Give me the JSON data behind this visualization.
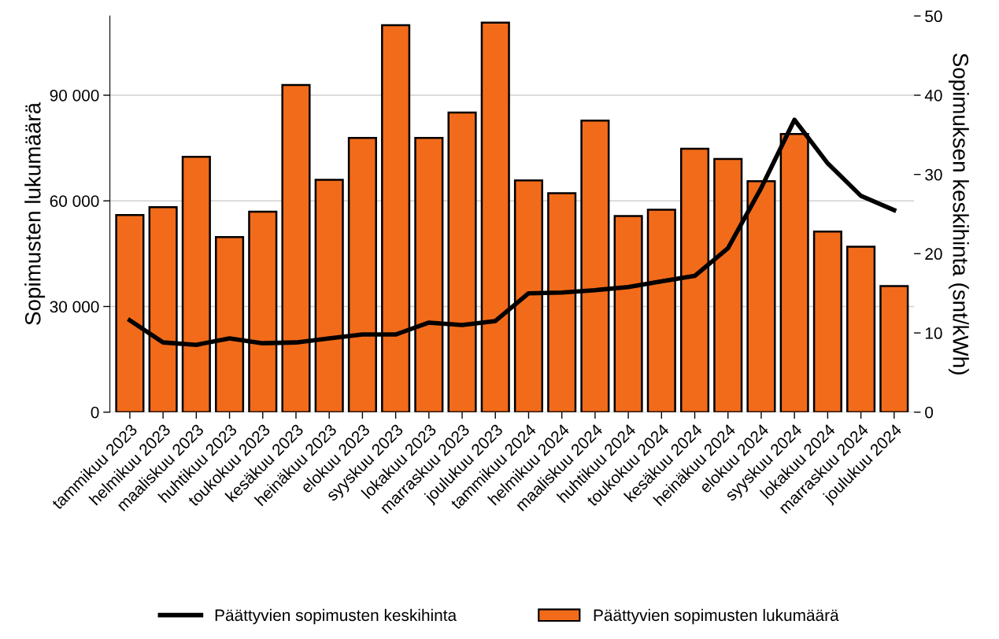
{
  "chart_data": {
    "type": "bar",
    "ylabel": "Sopimusten lukumäärä",
    "y2label": "Sopimuksen keskihinta (snt/kWh)",
    "categories": [
      "tammikuu 2023",
      "helmikuu 2023",
      "maaliskuu 2023",
      "huhtikuu 2023",
      "toukokuu 2023",
      "kesäkuu 2023",
      "heinäkuu 2023",
      "elokuu 2023",
      "syyskuu 2023",
      "lokakuu 2023",
      "marraskuu 2023",
      "joulukuu 2023",
      "tammikuu 2024",
      "helmikuu 2024",
      "maaliskuu 2024",
      "huhtikuu 2024",
      "toukokuu 2024",
      "kesäkuu 2024",
      "heinäkuu 2024",
      "elokuu 2024",
      "syyskuu 2024",
      "lokakuu 2024",
      "marraskuu 2024",
      "joulukuu 2024"
    ],
    "series": [
      {
        "name": "Päättyvien sopimusten keskihinta",
        "type": "line",
        "axis": "y2",
        "color": "#000000",
        "values": [
          11.6,
          8.8,
          8.5,
          9.3,
          8.7,
          8.8,
          9.3,
          9.8,
          9.8,
          11.3,
          11.0,
          11.5,
          15.0,
          15.1,
          15.4,
          15.8,
          16.5,
          17.2,
          20.7,
          28.3,
          36.9,
          31.4,
          27.3,
          25.5
        ]
      },
      {
        "name": "Päättyvien sopimusten lukumäärä",
        "color": "#f26b1a",
        "values": [
          56000,
          58200,
          72500,
          49700,
          56900,
          92900,
          66000,
          77900,
          109900,
          77900,
          85100,
          110600,
          65800,
          62200,
          82800,
          55700,
          57500,
          74800,
          71900,
          65600,
          79000,
          51300,
          47000,
          35800
        ]
      }
    ],
    "ylim": [
      0,
      112500
    ],
    "yticks": [
      0,
      {
        "value": 30000,
        "label": "30 000"
      },
      {
        "value": 60000,
        "label": "60 000"
      },
      {
        "value": 90000,
        "label": "90 000"
      }
    ],
    "y2lim": [
      0,
      50
    ],
    "y2ticks": [
      0,
      10,
      20,
      30,
      40,
      50
    ],
    "grid": "y",
    "legend": "bottom",
    "line_style": "solid",
    "marker": "none"
  }
}
